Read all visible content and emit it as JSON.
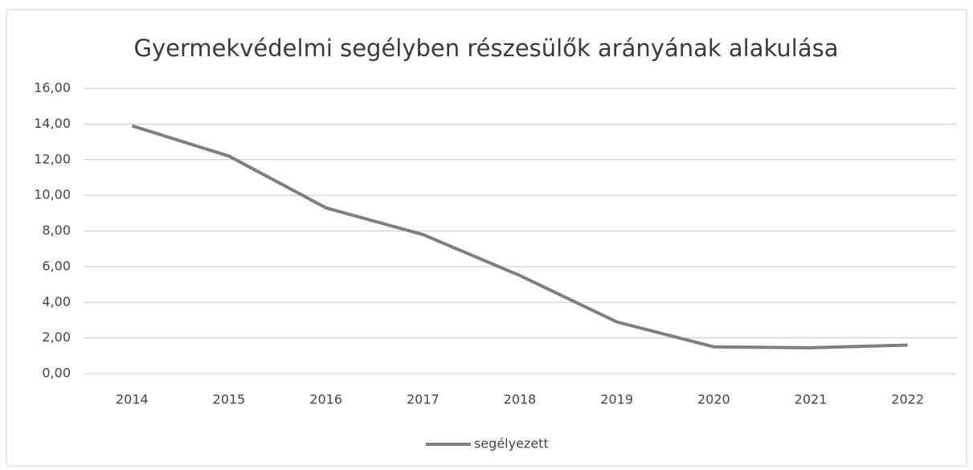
{
  "chart_data": {
    "type": "line",
    "title": "Gyermekvédelmi segélyben részesülők arányának alakulása",
    "categories": [
      "2014",
      "2015",
      "2016",
      "2017",
      "2018",
      "2019",
      "2020",
      "2021",
      "2022"
    ],
    "series": [
      {
        "name": "segélyezett",
        "color": "#7f7f7f",
        "values": [
          13.9,
          12.2,
          9.3,
          7.8,
          5.5,
          2.9,
          1.5,
          1.45,
          1.6
        ]
      }
    ],
    "ylim": [
      0,
      16
    ],
    "yticks": [
      {
        "value": 0,
        "label": "0,00"
      },
      {
        "value": 2,
        "label": "2,00"
      },
      {
        "value": 4,
        "label": "4,00"
      },
      {
        "value": 6,
        "label": "6,00"
      },
      {
        "value": 8,
        "label": "8,00"
      },
      {
        "value": 10,
        "label": "10,00"
      },
      {
        "value": 12,
        "label": "12,00"
      },
      {
        "value": 14,
        "label": "14,00"
      },
      {
        "value": 16,
        "label": "16,00"
      }
    ],
    "grid": true,
    "legend": "bottom"
  }
}
